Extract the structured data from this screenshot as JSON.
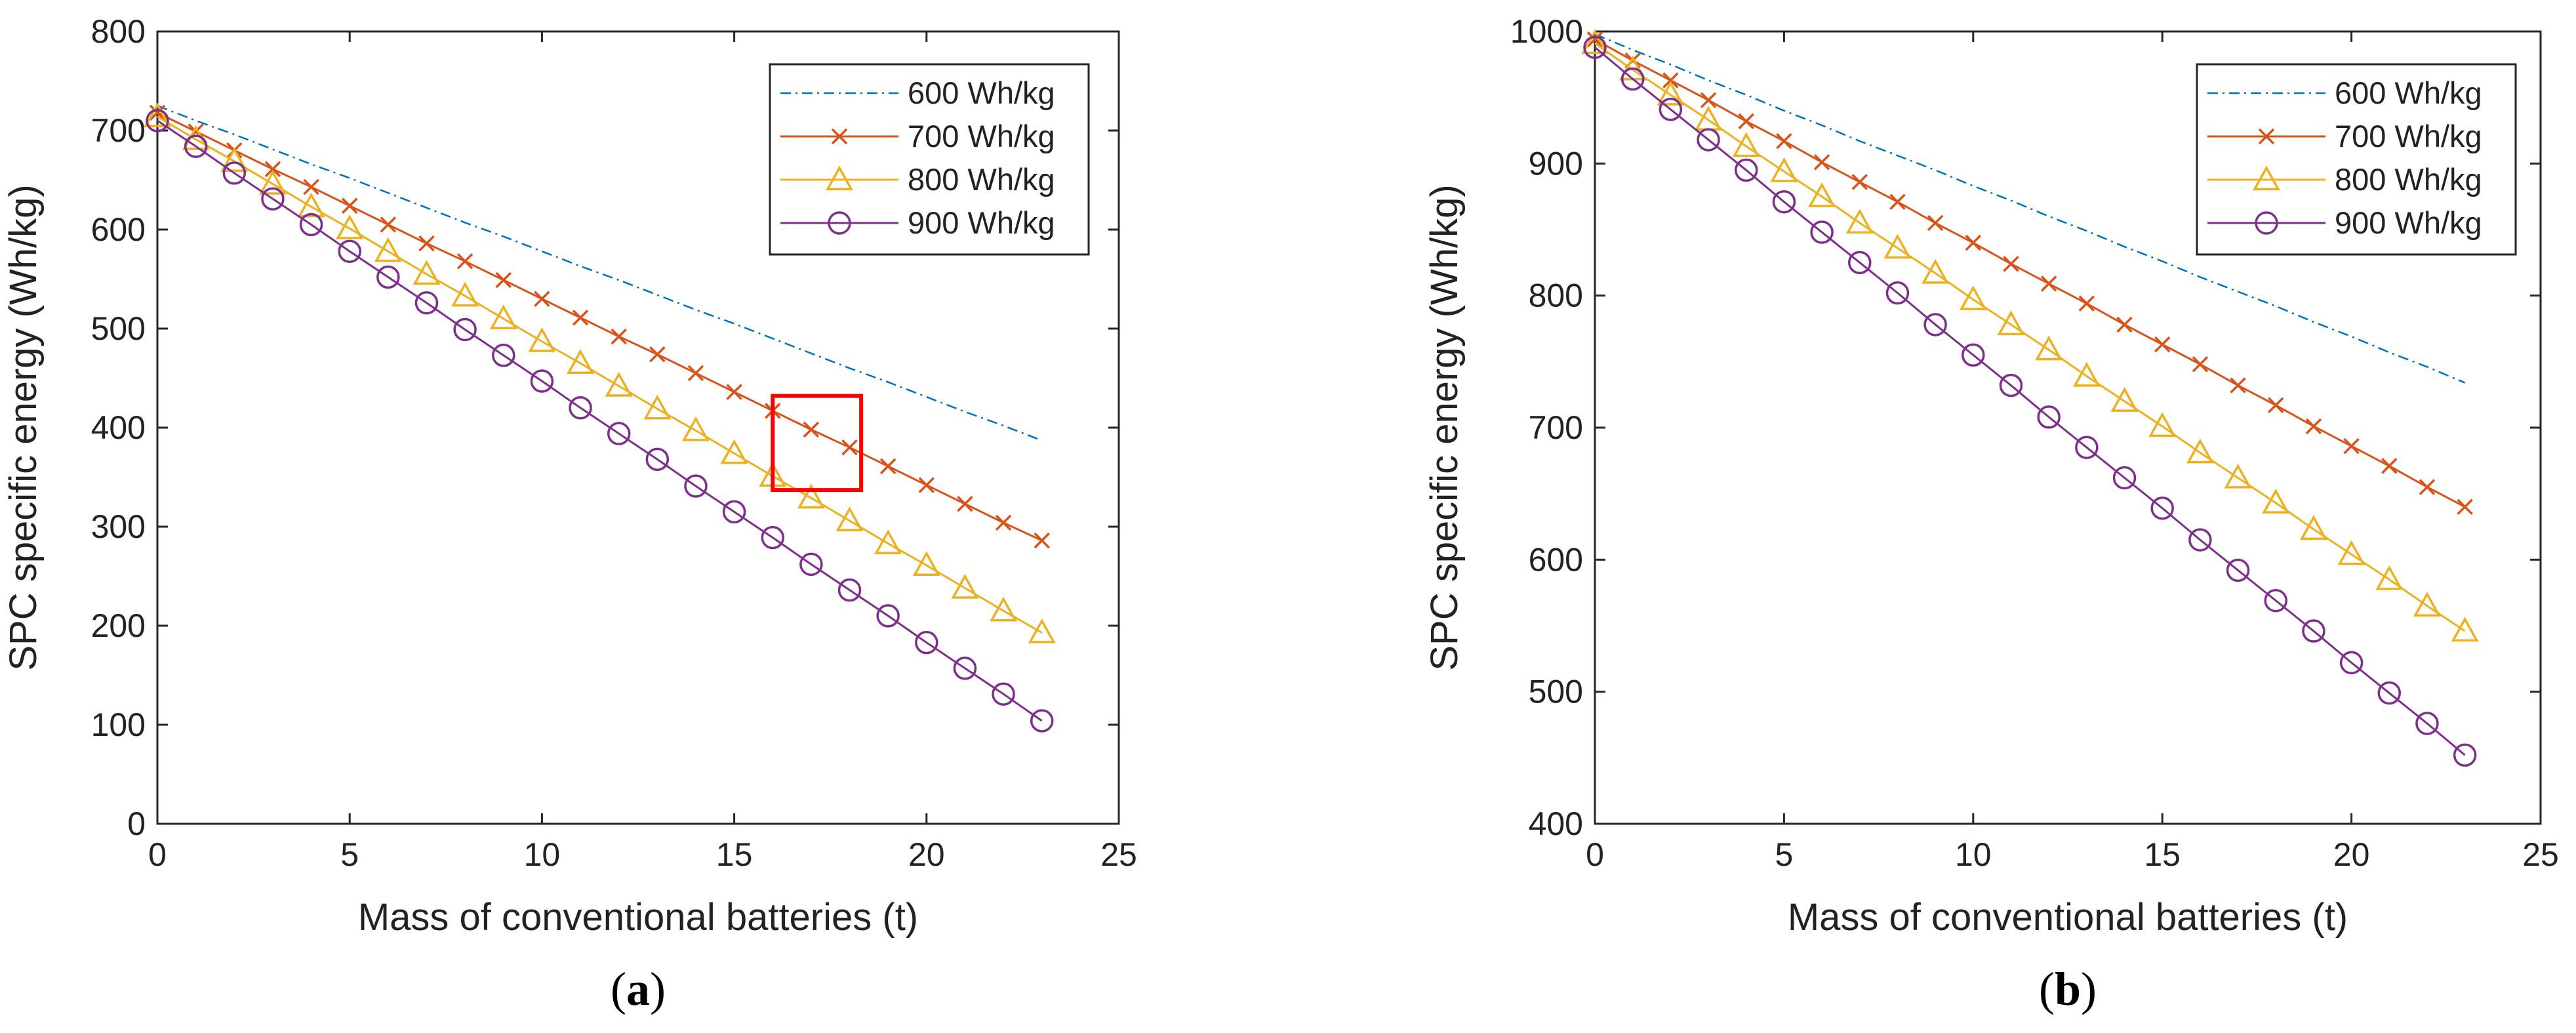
{
  "chart_data": [
    {
      "type": "line",
      "panel_label": "(a)",
      "xlabel": "Mass of conventional batteries (t)",
      "ylabel": "SPC specific energy (Wh/kg)",
      "xlim": [
        0,
        25
      ],
      "ylim": [
        0,
        800
      ],
      "xticks": [
        0,
        5,
        10,
        15,
        20,
        25
      ],
      "yticks": [
        0,
        100,
        200,
        300,
        400,
        500,
        600,
        700,
        800
      ],
      "grid": false,
      "legend_position": "top-right",
      "x": [
        0,
        1,
        2,
        3,
        4,
        5,
        6,
        7,
        8,
        9,
        10,
        11,
        12,
        13,
        14,
        15,
        16,
        17,
        18,
        19,
        20,
        21,
        22,
        23
      ],
      "series": [
        {
          "name": "600 Wh/kg",
          "color": "#0072BD",
          "marker": "none",
          "line": "dashdot",
          "values": [
            725,
            710,
            696,
            681,
            666,
            652,
            637,
            622,
            607,
            593,
            578,
            563,
            549,
            534,
            519,
            505,
            490,
            475,
            460,
            446,
            431,
            416,
            402,
            387
          ]
        },
        {
          "name": "700 Wh/kg",
          "color": "#D95319",
          "marker": "x",
          "line": "solid",
          "values": [
            718,
            699,
            680,
            661,
            643,
            624,
            605,
            586,
            568,
            549,
            530,
            511,
            492,
            474,
            455,
            436,
            417,
            398,
            380,
            361,
            342,
            323,
            304,
            286
          ]
        },
        {
          "name": "800 Wh/kg",
          "color": "#EDB120",
          "marker": "triangle",
          "line": "solid",
          "values": [
            714,
            691,
            669,
            646,
            623,
            601,
            578,
            555,
            533,
            510,
            487,
            465,
            442,
            419,
            397,
            374,
            351,
            329,
            306,
            283,
            261,
            238,
            215,
            193
          ]
        },
        {
          "name": "900 Wh/kg",
          "color": "#7E2F8E",
          "marker": "circle",
          "line": "solid",
          "values": [
            710,
            684,
            657,
            631,
            605,
            578,
            552,
            526,
            499,
            473,
            447,
            420,
            394,
            368,
            341,
            315,
            289,
            262,
            236,
            210,
            183,
            157,
            131,
            104
          ]
        }
      ],
      "annotation": {
        "type": "box",
        "color": "#FF0000",
        "x_range": [
          16,
          18.3
        ],
        "y_range": [
          337,
          432
        ]
      }
    },
    {
      "type": "line",
      "panel_label": "(b)",
      "xlabel": "Mass of conventional batteries (t)",
      "ylabel": "SPC specific energy (Wh/kg)",
      "xlim": [
        0,
        25
      ],
      "ylim": [
        400,
        1000
      ],
      "xticks": [
        0,
        5,
        10,
        15,
        20,
        25
      ],
      "yticks": [
        400,
        500,
        600,
        700,
        800,
        900,
        1000
      ],
      "grid": false,
      "legend_position": "top-right",
      "x": [
        0,
        1,
        2,
        3,
        4,
        5,
        6,
        7,
        8,
        9,
        10,
        11,
        12,
        13,
        14,
        15,
        16,
        17,
        18,
        19,
        20,
        21,
        22,
        23
      ],
      "series": [
        {
          "name": "600 Wh/kg",
          "color": "#0072BD",
          "marker": "none",
          "line": "dashdot",
          "values": [
            998,
            986,
            975,
            963,
            952,
            940,
            929,
            917,
            906,
            895,
            883,
            872,
            860,
            849,
            837,
            826,
            814,
            803,
            792,
            780,
            769,
            757,
            746,
            734
          ]
        },
        {
          "name": "700 Wh/kg",
          "color": "#D95319",
          "marker": "x",
          "line": "solid",
          "values": [
            994,
            978,
            963,
            948,
            932,
            917,
            901,
            886,
            871,
            855,
            840,
            824,
            809,
            794,
            778,
            763,
            748,
            732,
            717,
            701,
            686,
            671,
            655,
            640
          ]
        },
        {
          "name": "800 Wh/kg",
          "color": "#EDB120",
          "marker": "triangle",
          "line": "solid",
          "values": [
            991,
            971,
            952,
            933,
            913,
            894,
            875,
            855,
            836,
            817,
            797,
            778,
            759,
            739,
            720,
            701,
            681,
            662,
            643,
            623,
            604,
            585,
            565,
            546
          ]
        },
        {
          "name": "900 Wh/kg",
          "color": "#7E2F8E",
          "marker": "circle",
          "line": "solid",
          "values": [
            988,
            964,
            941,
            918,
            895,
            871,
            848,
            825,
            802,
            778,
            755,
            732,
            708,
            685,
            662,
            639,
            615,
            592,
            569,
            546,
            522,
            499,
            476,
            452
          ]
        }
      ]
    }
  ]
}
